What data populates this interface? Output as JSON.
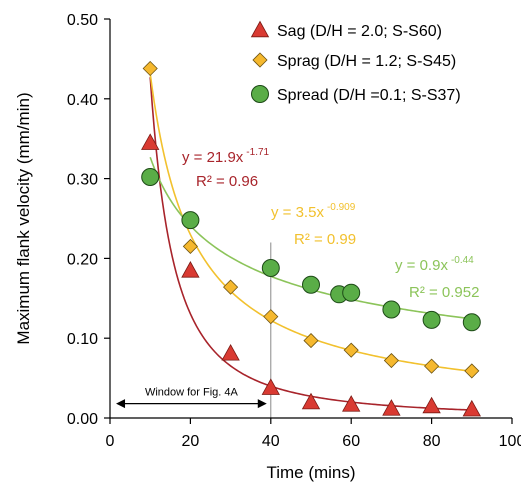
{
  "chart_data": {
    "type": "scatter",
    "xlabel": "Time (mins)",
    "ylabel": "Maximum flank velocity (mm/min)",
    "xlim": [
      0,
      100
    ],
    "ylim": [
      0,
      0.5
    ],
    "xticks": [
      0,
      20,
      40,
      60,
      80,
      100
    ],
    "yticks": [
      0.0,
      0.1,
      0.2,
      0.3,
      0.4,
      0.5
    ],
    "xtick_labels": [
      "0",
      "20",
      "40",
      "60",
      "80",
      "100"
    ],
    "ytick_labels": [
      "0.00",
      "0.10",
      "0.20",
      "0.30",
      "0.40",
      "0.50"
    ],
    "grid": false,
    "legend_position": "top-right",
    "series": [
      {
        "name": "Sag (D/H = 2.0; S-S60)",
        "marker": "triangle",
        "color": "#d93a32",
        "line_color": "#a8242b",
        "x": [
          10,
          20,
          30,
          40,
          50,
          60,
          70,
          80,
          90
        ],
        "y": [
          0.345,
          0.185,
          0.081,
          0.038,
          0.02,
          0.017,
          0.012,
          0.015,
          0.011
        ],
        "fit": {
          "a": 21.9,
          "b": -1.71,
          "x_range": [
            10,
            90
          ]
        },
        "equation": "y = 21.9x",
        "exponent": "-1.71",
        "r2": "R² = 0.96"
      },
      {
        "name": "Sprag (D/H = 1.2; S-S45)",
        "marker": "diamond",
        "color": "#f5b82e",
        "line_color": "#f2c12e",
        "x": [
          10,
          20,
          30,
          40,
          50,
          60,
          70,
          80,
          90
        ],
        "y": [
          0.438,
          0.215,
          0.164,
          0.127,
          0.097,
          0.085,
          0.072,
          0.065,
          0.059
        ],
        "fit": {
          "a": 3.5,
          "b": -0.909,
          "x_range": [
            10,
            90
          ]
        },
        "equation": "y = 3.5x",
        "exponent": "-0.909",
        "r2": "R² = 0.99"
      },
      {
        "name": "Spread (D/H =0.1; S-S37)",
        "marker": "circle",
        "color": "#5aad47",
        "line_color": "#8cc45a",
        "x": [
          10,
          20,
          40,
          50,
          57,
          60,
          70,
          80,
          90
        ],
        "y": [
          0.302,
          0.248,
          0.188,
          0.167,
          0.155,
          0.157,
          0.136,
          0.123,
          0.12
        ],
        "fit": {
          "a": 0.9,
          "b": -0.44,
          "x_range": [
            10,
            90
          ]
        },
        "equation": "y = 0.9x",
        "exponent": "-0.44",
        "r2": "R² = 0.952"
      }
    ],
    "vertical_line": {
      "x": 40,
      "y_range": [
        0,
        0.22
      ],
      "color": "#888888"
    },
    "window_arrow": {
      "x_range": [
        1.5,
        39
      ],
      "y": 0.018,
      "label": "Window for Fig. 4A"
    }
  }
}
